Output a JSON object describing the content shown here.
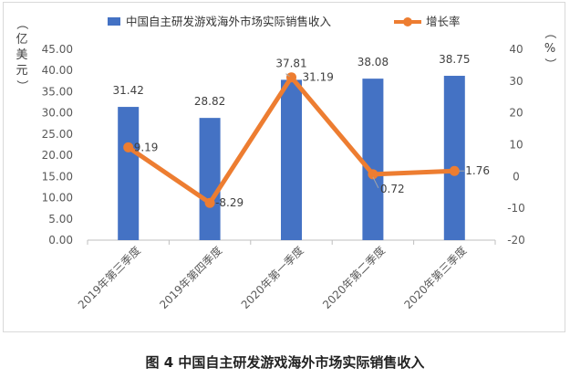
{
  "caption": "图 4  中国自主研发游戏海外市场实际销售收入",
  "chart_data": {
    "type": "bar+line",
    "categories": [
      "2019年第三季度",
      "2019年第四季度",
      "2020年第一季度",
      "2020年第二季度",
      "2020年第三季度"
    ],
    "series": [
      {
        "name": "中国自主研发游戏海外市场实际销售收入",
        "type": "bar",
        "axis": "left",
        "color": "#4472c4",
        "values": [
          31.42,
          28.82,
          37.81,
          38.08,
          38.75
        ]
      },
      {
        "name": "增长率",
        "type": "line",
        "axis": "right",
        "color": "#ed7d31",
        "values": [
          9.19,
          -8.29,
          31.19,
          0.72,
          1.76
        ]
      }
    ],
    "y_left": {
      "label": "（亿美元）",
      "ylim": [
        0,
        45
      ],
      "ticks": [
        "0.00",
        "5.00",
        "10.00",
        "15.00",
        "20.00",
        "25.00",
        "30.00",
        "35.00",
        "40.00",
        "45.00"
      ]
    },
    "y_right": {
      "label": "（%）",
      "ylim": [
        -20,
        40
      ],
      "ticks": [
        "-20",
        "-10",
        "0",
        "10",
        "20",
        "30",
        "40"
      ]
    },
    "bar_labels": [
      "31.42",
      "28.82",
      "37.81",
      "38.08",
      "38.75"
    ],
    "line_labels": [
      "9.19",
      "-8.29",
      "31.19",
      "0.72",
      "1.76"
    ],
    "legend_position": "top",
    "grid": false
  }
}
